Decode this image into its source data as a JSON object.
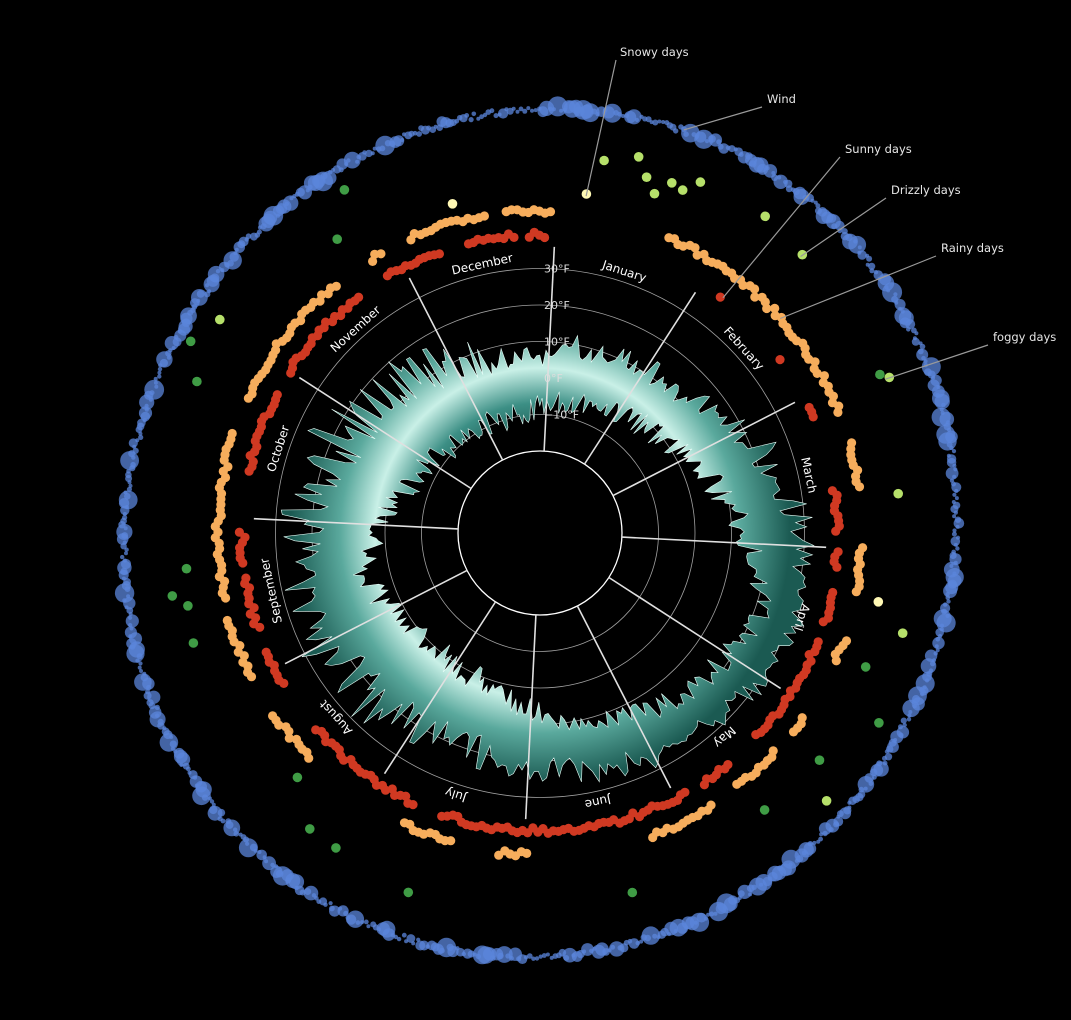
{
  "chart_data": {
    "type": "radial",
    "months": [
      "January",
      "February",
      "March",
      "April",
      "May",
      "June",
      "July",
      "August",
      "September",
      "October",
      "November",
      "December"
    ],
    "temperature_axis": {
      "unit": "°F",
      "ticks": [
        -10,
        0,
        10,
        20,
        30
      ],
      "tick_labels": [
        "−10°F",
        "0°F",
        "10°F",
        "20°F",
        "30°F"
      ],
      "range": [
        -20,
        40
      ]
    },
    "temperature_band": {
      "note_days": 365,
      "monthly_mean": [
        5,
        8,
        19,
        30,
        25,
        20,
        12,
        12,
        18,
        8,
        3,
        0
      ],
      "monthly_peak": [
        14,
        15,
        32,
        34,
        30,
        28,
        25,
        30,
        32,
        28,
        22,
        10
      ]
    },
    "series": [
      {
        "name": "Wind",
        "color": "#5b86db",
        "segments": [
          [
            0,
            365
          ]
        ],
        "size_by": "wind_speed"
      },
      {
        "name": "Snowy days",
        "color": "#fff8b4",
        "days": [
          5,
          100,
          347
        ]
      },
      {
        "name": "Sunny days",
        "color": "#d03922",
        "segments": [
          [
            35,
            36
          ],
          [
            52,
            53
          ],
          [
            63,
            66
          ],
          [
            80,
            89
          ],
          [
            92,
            96
          ],
          [
            100,
            107
          ],
          [
            110,
            133
          ],
          [
            140,
            147
          ],
          [
            150,
            200
          ],
          [
            205,
            230
          ],
          [
            240,
            248
          ],
          [
            252,
            263
          ],
          [
            265,
            272
          ],
          [
            283,
            300
          ],
          [
            304,
            325
          ],
          [
            331,
            343
          ],
          [
            348,
            358
          ],
          [
            360,
            364
          ]
        ]
      },
      {
        "name": "Drizzly days",
        "color": "#b6e06a",
        "days": [
          7,
          12,
          14,
          16,
          18,
          20,
          22,
          33,
          41,
          64,
          82,
          104,
          132,
          305
        ]
      },
      {
        "name": "Rainy days",
        "color": "#f6ad5c",
        "segments": [
          [
            21,
            67
          ],
          [
            72,
            81
          ],
          [
            91,
            100
          ],
          [
            108,
            113
          ],
          [
            124,
            128
          ],
          [
            132,
            142
          ],
          [
            147,
            160
          ],
          [
            182,
            188
          ],
          [
            196,
            206
          ],
          [
            226,
            237
          ],
          [
            244,
            256
          ],
          [
            259,
            290
          ],
          [
            296,
            323
          ],
          [
            330,
            333
          ],
          [
            338,
            353
          ],
          [
            356,
            365
          ]
        ]
      },
      {
        "name": "foggy days",
        "color": "#3f9c45",
        "days": [
          63,
          111,
          118,
          128,
          140,
          165,
          200,
          213,
          218,
          225,
          253,
          259,
          261,
          265,
          295,
          300,
          327,
          332
        ]
      }
    ],
    "legend_order": [
      "Snowy days",
      "Wind",
      "Sunny days",
      "Drizzly days",
      "Rainy days",
      "foggy days"
    ]
  }
}
